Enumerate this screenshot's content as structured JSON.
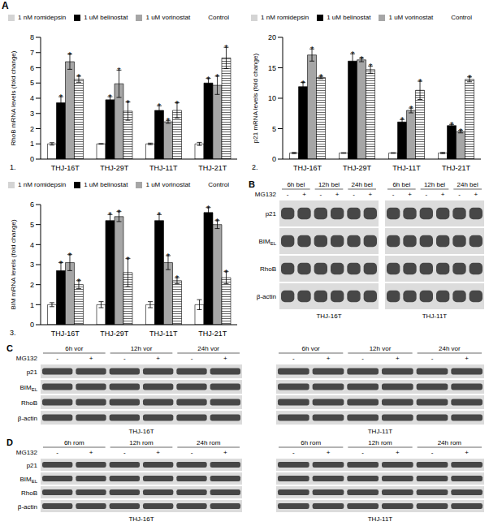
{
  "figure_label": "A",
  "chart_data": [
    {
      "type": "bar",
      "panel_number": "1.",
      "y_label": "RhoB mRNA levels (fold change)",
      "categories": [
        "THJ-16T",
        "THJ-29T",
        "THJ-11T",
        "THJ-21T"
      ],
      "ylim": [
        0,
        8
      ],
      "yticks": [
        0,
        1,
        2,
        3,
        4,
        5,
        6,
        7,
        8
      ],
      "legend": "top",
      "series": [
        {
          "name": "Control",
          "color": "#ffffff",
          "values": [
            1,
            1,
            1,
            1
          ],
          "errors": [
            0.08,
            0.02,
            0.05,
            0.1
          ]
        },
        {
          "name": "1 uM belinostat",
          "color": "#000000",
          "values": [
            3.7,
            3.9,
            3.2,
            5.0
          ],
          "errors": [
            0.4,
            0.2,
            0.3,
            0.3
          ],
          "annotations": [
            "*",
            "*",
            "*",
            "*"
          ]
        },
        {
          "name": "1 uM vorinostat",
          "color": "#a6a6a6",
          "values": [
            6.4,
            4.95,
            2.45,
            4.85
          ],
          "errors": [
            0.5,
            0.9,
            0.1,
            0.6
          ],
          "annotations": [
            "*",
            "*",
            "*",
            "*"
          ]
        },
        {
          "name": "1 nM romidepsin",
          "color": "#595959",
          "marker": "hatch",
          "values": [
            5.25,
            3.15,
            3.2,
            6.65
          ],
          "errors": [
            0.2,
            0.6,
            0.5,
            0.7
          ],
          "annotations": [
            "*",
            "*",
            "*",
            "*"
          ]
        }
      ]
    },
    {
      "type": "bar",
      "panel_number": "2.",
      "y_label": "p21 mRNA levels (fold change)",
      "categories": [
        "THJ-16T",
        "THJ-29T",
        "THJ-11T",
        "THJ-21T"
      ],
      "ylim": [
        0,
        20
      ],
      "yticks": [
        0,
        5,
        10,
        15,
        20
      ],
      "legend": "top",
      "series": [
        {
          "name": "Control",
          "color": "#ffffff",
          "values": [
            1,
            1,
            1,
            1
          ],
          "errors": [
            0.1,
            0.05,
            0.05,
            0.1
          ]
        },
        {
          "name": "1 uM belinostat",
          "color": "#000000",
          "values": [
            11.9,
            16.1,
            6.1,
            5.5
          ],
          "errors": [
            0.7,
            1.2,
            0.4,
            0.2
          ],
          "annotations": [
            "*",
            "*",
            "*",
            "*"
          ]
        },
        {
          "name": "1 uM vorinostat",
          "color": "#a6a6a6",
          "values": [
            17.1,
            16.3,
            8.0,
            4.5
          ],
          "errors": [
            1.0,
            0.3,
            0.4,
            0.2
          ],
          "annotations": [
            "*",
            "*",
            "*",
            "*"
          ]
        },
        {
          "name": "1 nM romidepsin",
          "color": "#595959",
          "marker": "hatch",
          "values": [
            13.4,
            14.7,
            11.3,
            13.1
          ],
          "errors": [
            0.2,
            0.6,
            1.5,
            0.4
          ],
          "annotations": [
            "*",
            "*",
            "*",
            "*"
          ]
        }
      ]
    },
    {
      "type": "bar",
      "panel_number": "3.",
      "y_label": "BIM mRNA levels (fold change)",
      "categories": [
        "THJ-16T",
        "THJ-29T",
        "THJ-11T",
        "THJ-21T"
      ],
      "ylim": [
        0,
        6
      ],
      "yticks": [
        0,
        1,
        2,
        3,
        4,
        5,
        6
      ],
      "legend": "top",
      "series": [
        {
          "name": "Control",
          "color": "#ffffff",
          "values": [
            1,
            1,
            1,
            1
          ],
          "errors": [
            0.1,
            0.15,
            0.15,
            0.25
          ]
        },
        {
          "name": "1 uM belinostat",
          "color": "#000000",
          "values": [
            2.7,
            5.2,
            5.2,
            5.6
          ],
          "errors": [
            0.4,
            0.3,
            0.3,
            0.25
          ],
          "annotations": [
            "*",
            "*",
            "*",
            "*"
          ]
        },
        {
          "name": "1 uM vorinostat",
          "color": "#a6a6a6",
          "values": [
            3.1,
            5.4,
            3.1,
            5.0
          ],
          "errors": [
            0.4,
            0.25,
            0.35,
            0.2
          ],
          "annotations": [
            "*",
            "*",
            "*",
            "*"
          ]
        },
        {
          "name": "1 nM romidepsin",
          "color": "#595959",
          "marker": "hatch",
          "values": [
            2.0,
            2.6,
            2.2,
            2.35
          ],
          "errors": [
            0.2,
            0.7,
            0.15,
            0.3
          ],
          "annotations": [
            "*",
            "*",
            "*",
            "*"
          ]
        }
      ]
    }
  ],
  "blots": [
    {
      "panel": "B",
      "treatments": [
        "6h bel",
        "12h bel",
        "24h bel"
      ],
      "inhibitor": "MG132",
      "signs": [
        "-",
        "+"
      ],
      "rows": [
        {
          "label": "p21"
        },
        {
          "label": "BIM",
          "subscript": "EL"
        },
        {
          "label": "RhoB"
        },
        {
          "label": "β-actin"
        }
      ],
      "cell_lines": [
        "THJ-16T",
        "THJ-11T"
      ]
    },
    {
      "panel": "C",
      "treatments": [
        "6h vor",
        "12h vor",
        "24h vor"
      ],
      "inhibitor": "MG132",
      "signs": [
        "-",
        "+"
      ],
      "rows": [
        {
          "label": "p21"
        },
        {
          "label": "BIM",
          "subscript": "EL"
        },
        {
          "label": "RhoB"
        },
        {
          "label": "β-actin"
        }
      ],
      "cell_lines": [
        "THJ-16T",
        "THJ-11T"
      ]
    },
    {
      "panel": "D",
      "treatments": [
        "6h rom",
        "12h rom",
        "24h rom"
      ],
      "inhibitor": "MG132",
      "signs": [
        "-",
        "+"
      ],
      "rows": [
        {
          "label": "p21"
        },
        {
          "label": "BIM",
          "subscript": "EL"
        },
        {
          "label": "RhoB"
        },
        {
          "label": "β-actin"
        }
      ],
      "cell_lines": [
        "THJ-16T",
        "THJ-11T"
      ]
    }
  ]
}
